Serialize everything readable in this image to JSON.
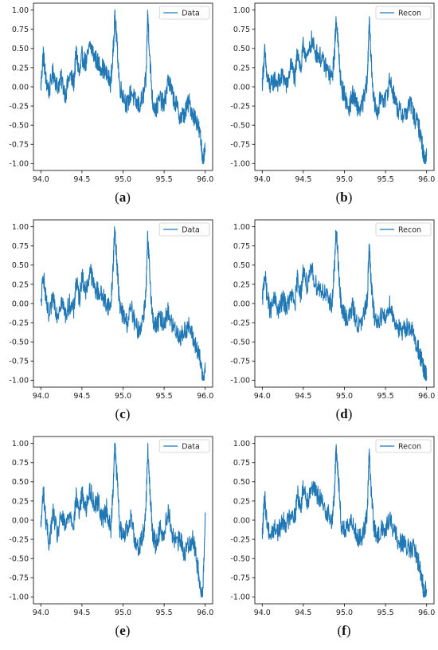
{
  "figure": {
    "panels": [
      {
        "id": "a",
        "caption_open": "(",
        "caption_letter": "a",
        "caption_close": ")"
      },
      {
        "id": "b",
        "caption_open": "(",
        "caption_letter": "b",
        "caption_close": ")"
      },
      {
        "id": "c",
        "caption_open": "(",
        "caption_letter": "c",
        "caption_close": ")"
      },
      {
        "id": "d",
        "caption_open": "(",
        "caption_letter": "d",
        "caption_close": ")"
      },
      {
        "id": "e",
        "caption_open": "(",
        "caption_letter": "e",
        "caption_close": ")"
      },
      {
        "id": "f",
        "caption_open": "(",
        "caption_letter": "f",
        "caption_close": ")"
      }
    ]
  },
  "chart_data": [
    {
      "panel": "a",
      "type": "line",
      "title": "",
      "xlabel": "",
      "ylabel": "",
      "xlim": [
        94.0,
        96.0
      ],
      "ylim": [
        -1.0,
        1.0
      ],
      "xticks": [
        "94.0",
        "94.5",
        "95.0",
        "95.5",
        "96.0"
      ],
      "yticks": [
        "1.00",
        "0.75",
        "0.50",
        "0.25",
        "0.00",
        "-0.25",
        "-0.50",
        "-0.75",
        "-1.00"
      ],
      "grid": false,
      "legend_position": "upper right",
      "line_color": "#1f77b4",
      "series": [
        {
          "name": "Data",
          "x": [
            94.0,
            94.03,
            94.06,
            94.1,
            94.15,
            94.2,
            94.25,
            94.3,
            94.35,
            94.4,
            94.43,
            94.47,
            94.5,
            94.55,
            94.6,
            94.65,
            94.7,
            94.75,
            94.8,
            94.85,
            94.88,
            94.9,
            94.93,
            94.96,
            95.0,
            95.05,
            95.1,
            95.15,
            95.2,
            95.25,
            95.28,
            95.3,
            95.33,
            95.36,
            95.4,
            95.45,
            95.5,
            95.55,
            95.6,
            95.65,
            95.7,
            95.75,
            95.8,
            95.85,
            95.9,
            95.94,
            95.97,
            96.0
          ],
          "y": [
            0.0,
            0.45,
            0.1,
            -0.05,
            0.2,
            0.0,
            0.1,
            -0.1,
            0.15,
            0.05,
            0.45,
            0.15,
            0.4,
            0.3,
            0.55,
            0.4,
            0.3,
            0.25,
            0.15,
            0.05,
            0.45,
            0.95,
            0.5,
            0.0,
            -0.1,
            -0.25,
            -0.05,
            -0.2,
            -0.25,
            -0.1,
            0.1,
            0.98,
            0.3,
            -0.2,
            -0.3,
            -0.15,
            -0.25,
            0.1,
            -0.1,
            -0.25,
            -0.4,
            -0.35,
            -0.2,
            -0.35,
            -0.45,
            -0.65,
            -0.95,
            -0.85
          ]
        }
      ]
    },
    {
      "panel": "b",
      "type": "line",
      "title": "",
      "xlabel": "",
      "ylabel": "",
      "xlim": [
        94.0,
        96.0
      ],
      "ylim": [
        -1.0,
        1.0
      ],
      "xticks": [
        "94.0",
        "94.5",
        "95.0",
        "95.5",
        "96.0"
      ],
      "yticks": [
        "1.00",
        "0.75",
        "0.50",
        "0.25",
        "0.00",
        "-0.25",
        "-0.50",
        "-0.75",
        "-1.00"
      ],
      "grid": false,
      "legend_position": "upper right",
      "line_color": "#1f77b4",
      "series": [
        {
          "name": "Recon",
          "x": [
            94.0,
            94.03,
            94.06,
            94.1,
            94.15,
            94.2,
            94.25,
            94.3,
            94.35,
            94.4,
            94.43,
            94.47,
            94.5,
            94.55,
            94.6,
            94.65,
            94.7,
            94.75,
            94.8,
            94.85,
            94.88,
            94.9,
            94.93,
            94.96,
            95.0,
            95.05,
            95.1,
            95.15,
            95.2,
            95.25,
            95.28,
            95.3,
            95.33,
            95.36,
            95.4,
            95.45,
            95.5,
            95.55,
            95.6,
            95.65,
            95.7,
            95.75,
            95.8,
            95.85,
            95.9,
            95.94,
            95.97,
            96.0
          ],
          "y": [
            0.05,
            0.45,
            0.1,
            0.0,
            0.1,
            0.05,
            0.15,
            0.0,
            0.3,
            0.1,
            0.5,
            0.2,
            0.55,
            0.35,
            0.6,
            0.45,
            0.4,
            0.3,
            0.2,
            0.1,
            0.45,
            0.92,
            0.45,
            0.0,
            -0.1,
            -0.3,
            -0.1,
            -0.25,
            -0.3,
            -0.1,
            0.1,
            0.88,
            0.25,
            -0.2,
            -0.35,
            -0.1,
            -0.2,
            0.1,
            -0.1,
            -0.3,
            -0.35,
            -0.35,
            -0.2,
            -0.4,
            -0.5,
            -0.7,
            -0.95,
            -0.9
          ]
        }
      ]
    },
    {
      "panel": "c",
      "type": "line",
      "title": "",
      "xlabel": "",
      "ylabel": "",
      "xlim": [
        94.0,
        96.0
      ],
      "ylim": [
        -1.0,
        1.0
      ],
      "xticks": [
        "94.0",
        "94.5",
        "95.0",
        "95.5",
        "96.0"
      ],
      "yticks": [
        "1.00",
        "0.75",
        "0.50",
        "0.25",
        "0.00",
        "-0.25",
        "-0.50",
        "-0.75",
        "-1.00"
      ],
      "grid": false,
      "legend_position": "upper right",
      "line_color": "#1f77b4",
      "series": [
        {
          "name": "Data",
          "x": [
            94.0,
            94.03,
            94.06,
            94.1,
            94.15,
            94.2,
            94.25,
            94.3,
            94.35,
            94.4,
            94.43,
            94.47,
            94.5,
            94.55,
            94.6,
            94.65,
            94.7,
            94.75,
            94.8,
            94.85,
            94.88,
            94.9,
            94.93,
            94.96,
            95.0,
            95.05,
            95.1,
            95.15,
            95.2,
            95.25,
            95.28,
            95.3,
            95.33,
            95.36,
            95.4,
            95.45,
            95.5,
            95.55,
            95.6,
            95.65,
            95.7,
            95.75,
            95.8,
            95.85,
            95.9,
            95.94,
            95.97,
            96.0
          ],
          "y": [
            -0.05,
            0.4,
            0.05,
            -0.2,
            0.1,
            -0.15,
            0.05,
            -0.15,
            0.0,
            -0.1,
            0.3,
            0.05,
            0.35,
            0.15,
            0.45,
            0.2,
            0.15,
            0.1,
            0.0,
            -0.05,
            0.5,
            1.0,
            0.45,
            -0.05,
            -0.15,
            -0.25,
            -0.05,
            -0.3,
            -0.35,
            -0.15,
            0.15,
            0.85,
            0.3,
            -0.2,
            -0.3,
            -0.2,
            -0.25,
            -0.1,
            -0.3,
            -0.35,
            -0.45,
            -0.35,
            -0.3,
            -0.45,
            -0.6,
            -0.75,
            -0.95,
            -0.9
          ]
        }
      ]
    },
    {
      "panel": "d",
      "type": "line",
      "title": "",
      "xlabel": "",
      "ylabel": "",
      "xlim": [
        94.0,
        96.0
      ],
      "ylim": [
        -1.0,
        1.0
      ],
      "xticks": [
        "94.0",
        "94.5",
        "95.0",
        "95.5",
        "96.0"
      ],
      "yticks": [
        "1.00",
        "0.75",
        "0.50",
        "0.25",
        "0.00",
        "-0.25",
        "-0.50",
        "-0.75",
        "-1.00"
      ],
      "grid": false,
      "legend_position": "upper right",
      "line_color": "#1f77b4",
      "series": [
        {
          "name": "Recon",
          "x": [
            94.0,
            94.03,
            94.06,
            94.1,
            94.15,
            94.2,
            94.25,
            94.3,
            94.35,
            94.4,
            94.43,
            94.47,
            94.5,
            94.55,
            94.6,
            94.65,
            94.7,
            94.75,
            94.8,
            94.85,
            94.88,
            94.9,
            94.93,
            94.96,
            95.0,
            95.05,
            95.1,
            95.15,
            95.2,
            95.25,
            95.28,
            95.3,
            95.33,
            95.36,
            95.4,
            95.45,
            95.5,
            95.55,
            95.6,
            95.65,
            95.7,
            95.75,
            95.8,
            95.85,
            95.9,
            95.94,
            95.97,
            96.0
          ],
          "y": [
            0.0,
            0.4,
            0.1,
            -0.1,
            0.05,
            -0.1,
            0.05,
            -0.05,
            0.1,
            0.0,
            0.35,
            0.1,
            0.45,
            0.2,
            0.45,
            0.25,
            0.2,
            0.15,
            0.05,
            0.0,
            0.5,
            0.95,
            0.45,
            -0.05,
            -0.15,
            -0.2,
            -0.05,
            -0.25,
            -0.3,
            -0.1,
            0.1,
            0.75,
            0.2,
            -0.15,
            -0.25,
            -0.15,
            -0.2,
            0.0,
            -0.2,
            -0.3,
            -0.4,
            -0.3,
            -0.3,
            -0.45,
            -0.6,
            -0.75,
            -0.9,
            -0.95
          ]
        }
      ]
    },
    {
      "panel": "e",
      "type": "line",
      "title": "",
      "xlabel": "",
      "ylabel": "",
      "xlim": [
        94.0,
        96.0
      ],
      "ylim": [
        -1.0,
        1.0
      ],
      "xticks": [
        "94.0",
        "94.5",
        "95.0",
        "95.5",
        "96.0"
      ],
      "yticks": [
        "1.00",
        "0.75",
        "0.50",
        "0.25",
        "0.00",
        "-0.25",
        "-0.50",
        "-0.75",
        "-1.00"
      ],
      "grid": false,
      "legend_position": "upper right",
      "line_color": "#1f77b4",
      "series": [
        {
          "name": "Data",
          "x": [
            94.0,
            94.03,
            94.06,
            94.1,
            94.15,
            94.2,
            94.25,
            94.3,
            94.35,
            94.4,
            94.43,
            94.47,
            94.5,
            94.55,
            94.6,
            94.65,
            94.7,
            94.75,
            94.8,
            94.85,
            94.88,
            94.9,
            94.93,
            94.96,
            95.0,
            95.05,
            95.1,
            95.15,
            95.2,
            95.25,
            95.28,
            95.3,
            95.33,
            95.36,
            95.4,
            95.45,
            95.5,
            95.55,
            95.6,
            95.65,
            95.7,
            95.75,
            95.8,
            95.85,
            95.9,
            95.94,
            95.97,
            96.0
          ],
          "y": [
            -0.1,
            0.4,
            0.0,
            -0.3,
            0.1,
            -0.2,
            0.05,
            -0.1,
            0.1,
            -0.05,
            0.3,
            0.1,
            0.35,
            0.15,
            0.4,
            0.2,
            0.25,
            0.0,
            0.15,
            -0.15,
            0.45,
            1.0,
            0.5,
            -0.1,
            -0.2,
            -0.1,
            0.05,
            -0.3,
            -0.35,
            -0.15,
            0.2,
            0.95,
            0.3,
            -0.15,
            -0.35,
            -0.1,
            -0.2,
            0.15,
            -0.2,
            -0.3,
            -0.25,
            -0.45,
            -0.3,
            -0.25,
            -0.55,
            -0.85,
            -1.0,
            0.1
          ]
        }
      ]
    },
    {
      "panel": "f",
      "type": "line",
      "title": "",
      "xlabel": "",
      "ylabel": "",
      "xlim": [
        94.0,
        96.0
      ],
      "ylim": [
        -1.0,
        1.0
      ],
      "xticks": [
        "94.0",
        "94.5",
        "95.0",
        "95.5",
        "96.0"
      ],
      "yticks": [
        "1.00",
        "0.75",
        "0.50",
        "0.25",
        "0.00",
        "-0.25",
        "-0.50",
        "-0.75",
        "-1.00"
      ],
      "grid": false,
      "legend_position": "upper right",
      "line_color": "#1f77b4",
      "series": [
        {
          "name": "Recon",
          "x": [
            94.0,
            94.03,
            94.06,
            94.1,
            94.15,
            94.2,
            94.25,
            94.3,
            94.35,
            94.4,
            94.43,
            94.47,
            94.5,
            94.55,
            94.6,
            94.65,
            94.7,
            94.75,
            94.8,
            94.85,
            94.88,
            94.9,
            94.93,
            94.96,
            95.0,
            95.05,
            95.1,
            95.15,
            95.2,
            95.25,
            95.28,
            95.3,
            95.33,
            95.36,
            95.4,
            95.45,
            95.5,
            95.55,
            95.6,
            95.65,
            95.7,
            95.75,
            95.8,
            95.85,
            95.9,
            95.94,
            95.97,
            96.0
          ],
          "y": [
            -0.2,
            0.3,
            -0.05,
            -0.2,
            -0.1,
            -0.15,
            0.0,
            -0.05,
            0.1,
            0.05,
            0.35,
            0.15,
            0.45,
            0.25,
            0.45,
            0.35,
            0.3,
            0.15,
            0.1,
            -0.05,
            0.4,
            0.97,
            0.5,
            -0.05,
            -0.15,
            -0.1,
            0.0,
            -0.2,
            -0.25,
            -0.1,
            0.15,
            0.88,
            0.3,
            -0.1,
            -0.25,
            -0.1,
            -0.15,
            0.05,
            -0.15,
            -0.25,
            -0.3,
            -0.35,
            -0.4,
            -0.35,
            -0.55,
            -0.75,
            -0.95,
            -0.9
          ]
        }
      ]
    }
  ]
}
